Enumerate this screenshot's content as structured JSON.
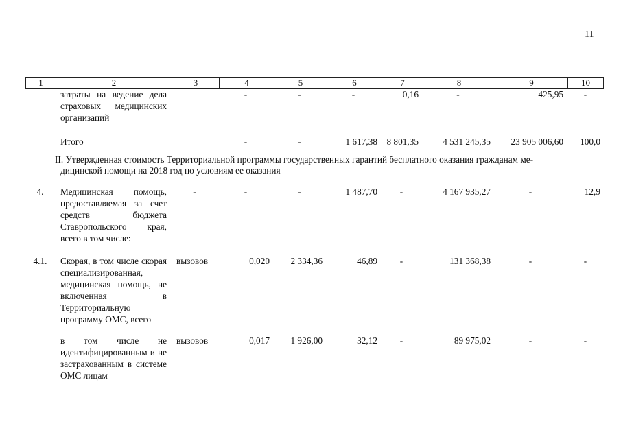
{
  "page_number": "11",
  "header_columns": [
    "1",
    "2",
    "3",
    "4",
    "5",
    "6",
    "7",
    "8",
    "9",
    "10"
  ],
  "rows_top": [
    {
      "num": "",
      "name": "затраты на ведение дела страховых медицинских организаций",
      "unit": "",
      "c4": "-",
      "c5": "-",
      "c6": "-",
      "c7": "0,16",
      "c8": "-",
      "c9": "425,95",
      "c10": "-"
    },
    {
      "num": "",
      "name": "Итого",
      "unit": "",
      "c4": "-",
      "c5": "-",
      "c6": "1 617,38",
      "c7": "8 801,35",
      "c8": "4 531 245,35",
      "c9": "23 905 006,60",
      "c10": "100,0"
    }
  ],
  "section_title_line1": "II. Утвержденная стоимость Территориальной программы государственных гарантий бесплатного оказания гражданам ме-",
  "section_title_line2": "дицинской помощи на 2018 год по условиям ее оказания",
  "rows_bottom": [
    {
      "num": "4.",
      "name": "Медицинская помощь, предоставляемая за счет средств бюджета Ставропольского края, всего в том числе:",
      "unit": "-",
      "c4": "-",
      "c5": "-",
      "c6": "1 487,70",
      "c7": "-",
      "c8": "4 167 935,27",
      "c9": "-",
      "c10": "12,9"
    },
    {
      "num": "4.1.",
      "name": "Скорая, в том числе скорая специализированная, медицинская помощь, не включенная в Территориальную программу ОМС, всего",
      "unit": "вызовов",
      "c4": "0,020",
      "c5": "2 334,36",
      "c6": "46,89",
      "c7": "-",
      "c8": "131 368,38",
      "c9": "-",
      "c10": "-"
    },
    {
      "num": "",
      "name": "в том числе не идентифицированным и не застрахованным в системе ОМС лицам",
      "unit": "вызовов",
      "c4": "0,017",
      "c5": "1 926,00",
      "c6": "32,12",
      "c7": "-",
      "c8": "89 975,02",
      "c9": "-",
      "c10": "-"
    }
  ]
}
